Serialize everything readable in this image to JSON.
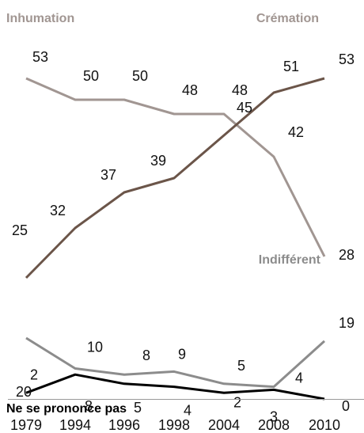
{
  "chart_data": {
    "type": "line",
    "x": [
      "1979",
      "1994",
      "1996",
      "1998",
      "2004",
      "2008",
      "2010"
    ],
    "series": [
      {
        "name": "Inhumation",
        "values": [
          53,
          50,
          50,
          48,
          48,
          42,
          28
        ],
        "color": "#a19692"
      },
      {
        "name": "Crémation",
        "values": [
          25,
          32,
          37,
          39,
          45,
          51,
          53
        ],
        "color": "#6b5549"
      },
      {
        "name": "Indifférent",
        "values": [
          20,
          10,
          8,
          9,
          5,
          4,
          19
        ],
        "color": "#8c8c8c"
      },
      {
        "name": "Ne se prononce pas",
        "values": [
          2,
          8,
          5,
          4,
          2,
          3,
          0
        ],
        "color": "#000000"
      }
    ],
    "ylim": [
      0,
      56
    ],
    "grid": false,
    "legend": "inline labels"
  }
}
